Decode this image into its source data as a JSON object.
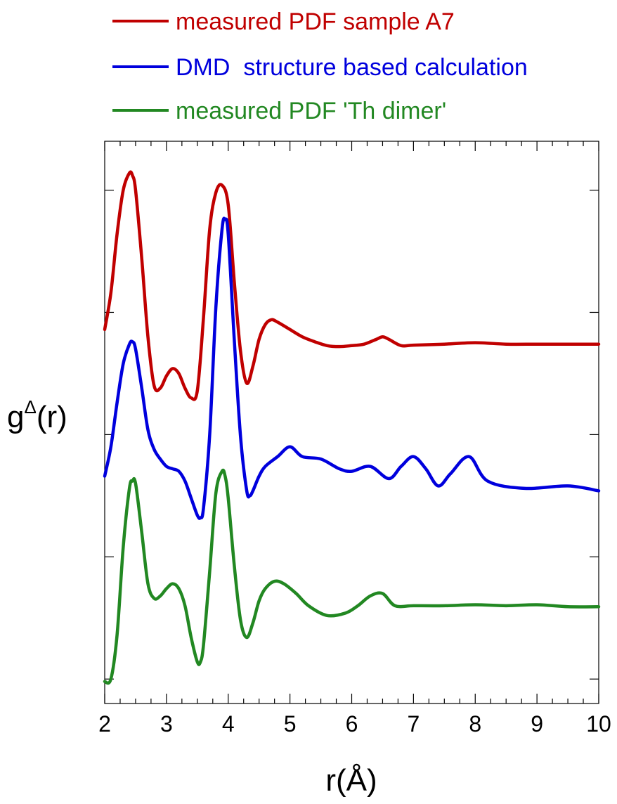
{
  "chart_data": {
    "type": "line",
    "xlabel": "r(Å)",
    "ylabel": "g",
    "ylabel_superscript": "Δ",
    "ylabel_suffix": "(r)",
    "xlim": [
      2,
      10
    ],
    "xticks": [
      2,
      3,
      4,
      5,
      6,
      7,
      8,
      9,
      10
    ],
    "ylim": [
      -0.5,
      11
    ],
    "y_tick_labels_shown": false,
    "grid": false,
    "legend_position": "top-left, above plot",
    "series": [
      {
        "name": "measured PDF sample A7",
        "color": "#c00000",
        "x": [
          2.0,
          2.1,
          2.2,
          2.3,
          2.4,
          2.45,
          2.5,
          2.6,
          2.7,
          2.8,
          2.9,
          3.0,
          3.1,
          3.2,
          3.3,
          3.4,
          3.5,
          3.6,
          3.7,
          3.8,
          3.9,
          4.0,
          4.1,
          4.2,
          4.3,
          4.4,
          4.5,
          4.6,
          4.7,
          4.8,
          5.0,
          5.2,
          5.4,
          5.6,
          5.8,
          6.0,
          6.2,
          6.4,
          6.5,
          6.6,
          6.8,
          7.0,
          7.5,
          8.0,
          8.5,
          9.0,
          9.5,
          10.0
        ],
        "values": [
          7.15,
          7.9,
          9.1,
          10.0,
          10.35,
          10.3,
          10.0,
          8.6,
          7.0,
          6.0,
          5.95,
          6.2,
          6.35,
          6.25,
          5.95,
          5.75,
          5.9,
          7.4,
          9.2,
          9.95,
          10.1,
          9.7,
          8.1,
          6.7,
          6.05,
          6.4,
          6.95,
          7.25,
          7.35,
          7.3,
          7.15,
          7.0,
          6.9,
          6.82,
          6.8,
          6.82,
          6.85,
          6.95,
          7.0,
          6.95,
          6.82,
          6.83,
          6.85,
          6.88,
          6.85,
          6.85,
          6.85,
          6.85
        ]
      },
      {
        "name": "DMD  structure based calculation",
        "color": "#0000dd",
        "x": [
          2.0,
          2.1,
          2.2,
          2.3,
          2.4,
          2.45,
          2.5,
          2.6,
          2.7,
          2.8,
          2.9,
          3.0,
          3.1,
          3.2,
          3.3,
          3.4,
          3.5,
          3.55,
          3.6,
          3.7,
          3.8,
          3.9,
          3.95,
          4.0,
          4.1,
          4.2,
          4.3,
          4.35,
          4.4,
          4.5,
          4.6,
          4.8,
          5.0,
          5.2,
          5.5,
          5.8,
          6.0,
          6.3,
          6.6,
          6.8,
          7.0,
          7.2,
          7.4,
          7.6,
          7.9,
          8.2,
          8.8,
          9.5,
          10.0
        ],
        "values": [
          4.15,
          4.75,
          5.65,
          6.45,
          6.85,
          6.9,
          6.75,
          5.95,
          5.1,
          4.7,
          4.5,
          4.35,
          4.3,
          4.25,
          4.05,
          3.7,
          3.35,
          3.3,
          3.5,
          5.0,
          7.6,
          9.2,
          9.4,
          9.1,
          6.9,
          4.95,
          3.85,
          3.75,
          3.85,
          4.15,
          4.35,
          4.55,
          4.75,
          4.55,
          4.5,
          4.3,
          4.25,
          4.35,
          4.1,
          4.35,
          4.55,
          4.3,
          3.95,
          4.2,
          4.55,
          4.05,
          3.9,
          3.95,
          3.85
        ]
      },
      {
        "name": "measured PDF 'Th dimer'",
        "color": "#228822",
        "x": [
          2.0,
          2.1,
          2.2,
          2.3,
          2.4,
          2.45,
          2.5,
          2.6,
          2.7,
          2.8,
          2.9,
          3.0,
          3.1,
          3.2,
          3.3,
          3.4,
          3.5,
          3.55,
          3.6,
          3.7,
          3.8,
          3.9,
          3.95,
          4.0,
          4.1,
          4.2,
          4.3,
          4.4,
          4.5,
          4.6,
          4.75,
          4.9,
          5.1,
          5.3,
          5.6,
          5.9,
          6.1,
          6.3,
          6.5,
          6.7,
          7.0,
          7.5,
          8.0,
          8.5,
          9.0,
          9.5,
          10.0
        ],
        "values": [
          -0.05,
          0.0,
          0.9,
          2.7,
          3.9,
          4.05,
          4.0,
          3.0,
          1.95,
          1.65,
          1.7,
          1.85,
          1.95,
          1.85,
          1.5,
          0.85,
          0.35,
          0.35,
          0.7,
          2.2,
          3.8,
          4.25,
          4.15,
          3.7,
          2.3,
          1.2,
          0.85,
          1.15,
          1.6,
          1.85,
          2.0,
          1.95,
          1.75,
          1.5,
          1.3,
          1.35,
          1.5,
          1.7,
          1.75,
          1.5,
          1.5,
          1.5,
          1.52,
          1.5,
          1.52,
          1.48,
          1.48
        ]
      }
    ]
  }
}
